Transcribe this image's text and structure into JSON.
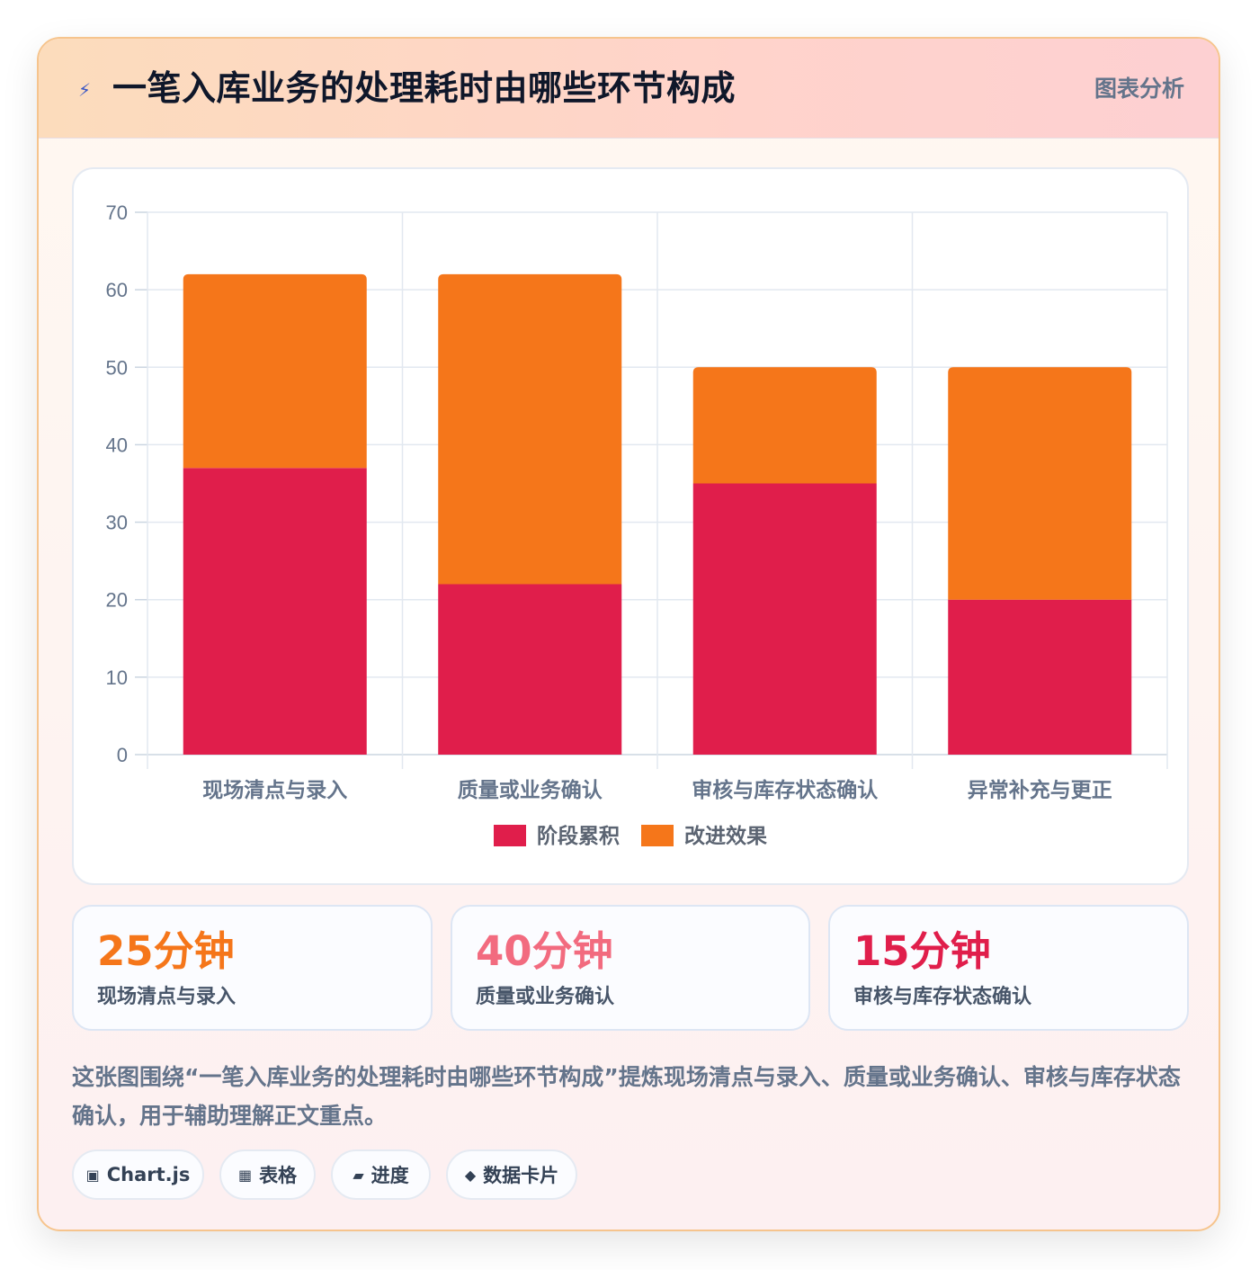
{
  "header": {
    "icon": "⚡",
    "icon_name": "lightning-icon",
    "title": "一笔入库业务的处理耗时由哪些环节构成",
    "tag": "图表分析"
  },
  "chart_data": {
    "type": "bar",
    "stacked": true,
    "categories": [
      "现场清点与录入",
      "质量或业务确认",
      "审核与库存状态确认",
      "异常补充与更正"
    ],
    "series": [
      {
        "name": "阶段累积",
        "values": [
          37,
          22,
          35,
          20
        ],
        "color": "#e01e4b"
      },
      {
        "name": "改进效果",
        "values": [
          25,
          40,
          15,
          30
        ],
        "color": "#f5761a"
      }
    ],
    "ylim": [
      0,
      70
    ],
    "yticks": [
      0,
      10,
      20,
      30,
      40,
      50,
      60,
      70
    ],
    "grid": true,
    "legend_position": "bottom"
  },
  "stats": [
    {
      "value": "25分钟",
      "label": "现场清点与录入",
      "color": "#f5761a"
    },
    {
      "value": "40分钟",
      "label": "质量或业务确认",
      "color": "#f26b7f"
    },
    {
      "value": "15分钟",
      "label": "审核与库存状态确认",
      "color": "#e01e4b"
    }
  ],
  "description": "这张图围绕“一笔入库业务的处理耗时由哪些环节构成”提炼现场清点与录入、质量或业务确认、审核与库存状态确认，用于辅助理解正文重点。",
  "chips": [
    {
      "icon": "▣",
      "icon_name": "chart-icon",
      "label": "Chart.js"
    },
    {
      "icon": "▦",
      "icon_name": "table-icon",
      "label": "表格"
    },
    {
      "icon": "▰",
      "icon_name": "progress-icon",
      "label": "进度"
    },
    {
      "icon": "◆",
      "icon_name": "data-card-icon",
      "label": "数据卡片"
    }
  ]
}
